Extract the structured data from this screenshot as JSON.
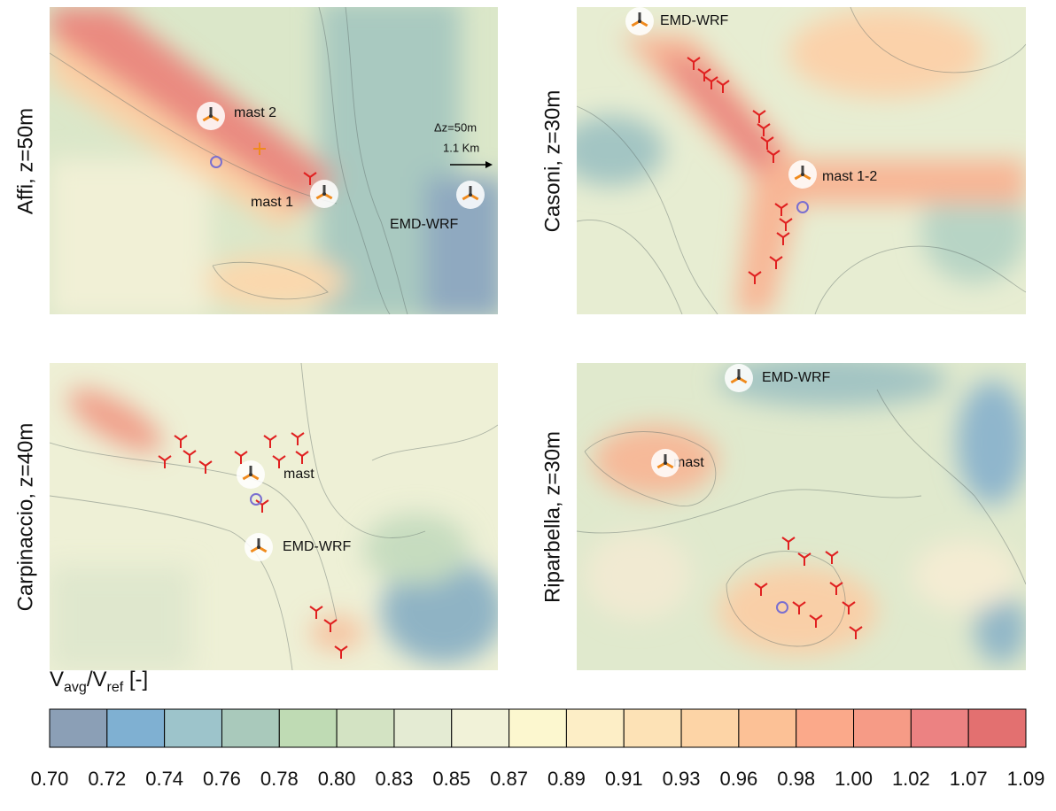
{
  "panels": [
    {
      "title": "Affi, z=50m",
      "annotations": [
        "mast 2",
        "mast 1",
        "EMD-WRF",
        "Δz=50m",
        "1.1 Km"
      ]
    },
    {
      "title": "Casoni, z=30m",
      "annotations": [
        "EMD-WRF",
        "mast 1-2"
      ]
    },
    {
      "title": "Carpinaccio, z=40m",
      "annotations": [
        "mast",
        "EMD-WRF"
      ]
    },
    {
      "title": "Riparbella, z=30m",
      "annotations": [
        "EMD-WRF",
        "mast"
      ]
    }
  ],
  "colorbar": {
    "label": {
      "main": "V",
      "sub1": "avg",
      "mid": "/V",
      "sub2": "ref",
      "unit": " [-]"
    },
    "ticks": [
      "0.70",
      "0.72",
      "0.74",
      "0.76",
      "0.78",
      "0.80",
      "0.83",
      "0.85",
      "0.87",
      "0.89",
      "0.91",
      "0.93",
      "0.96",
      "0.98",
      "1.00",
      "1.02",
      "1.07",
      "1.09"
    ],
    "colors": [
      "#8b9fb6",
      "#7fb0d2",
      "#9dc4cb",
      "#a9c9bb",
      "#bfdbb4",
      "#d3e3c3",
      "#e4ebd3",
      "#f1f2d8",
      "#fcf7cf",
      "#fdeec6",
      "#fde2b6",
      "#fdd4a6",
      "#fcc196",
      "#fba98a",
      "#f69b86",
      "#ec8282",
      "#e37070"
    ]
  }
}
